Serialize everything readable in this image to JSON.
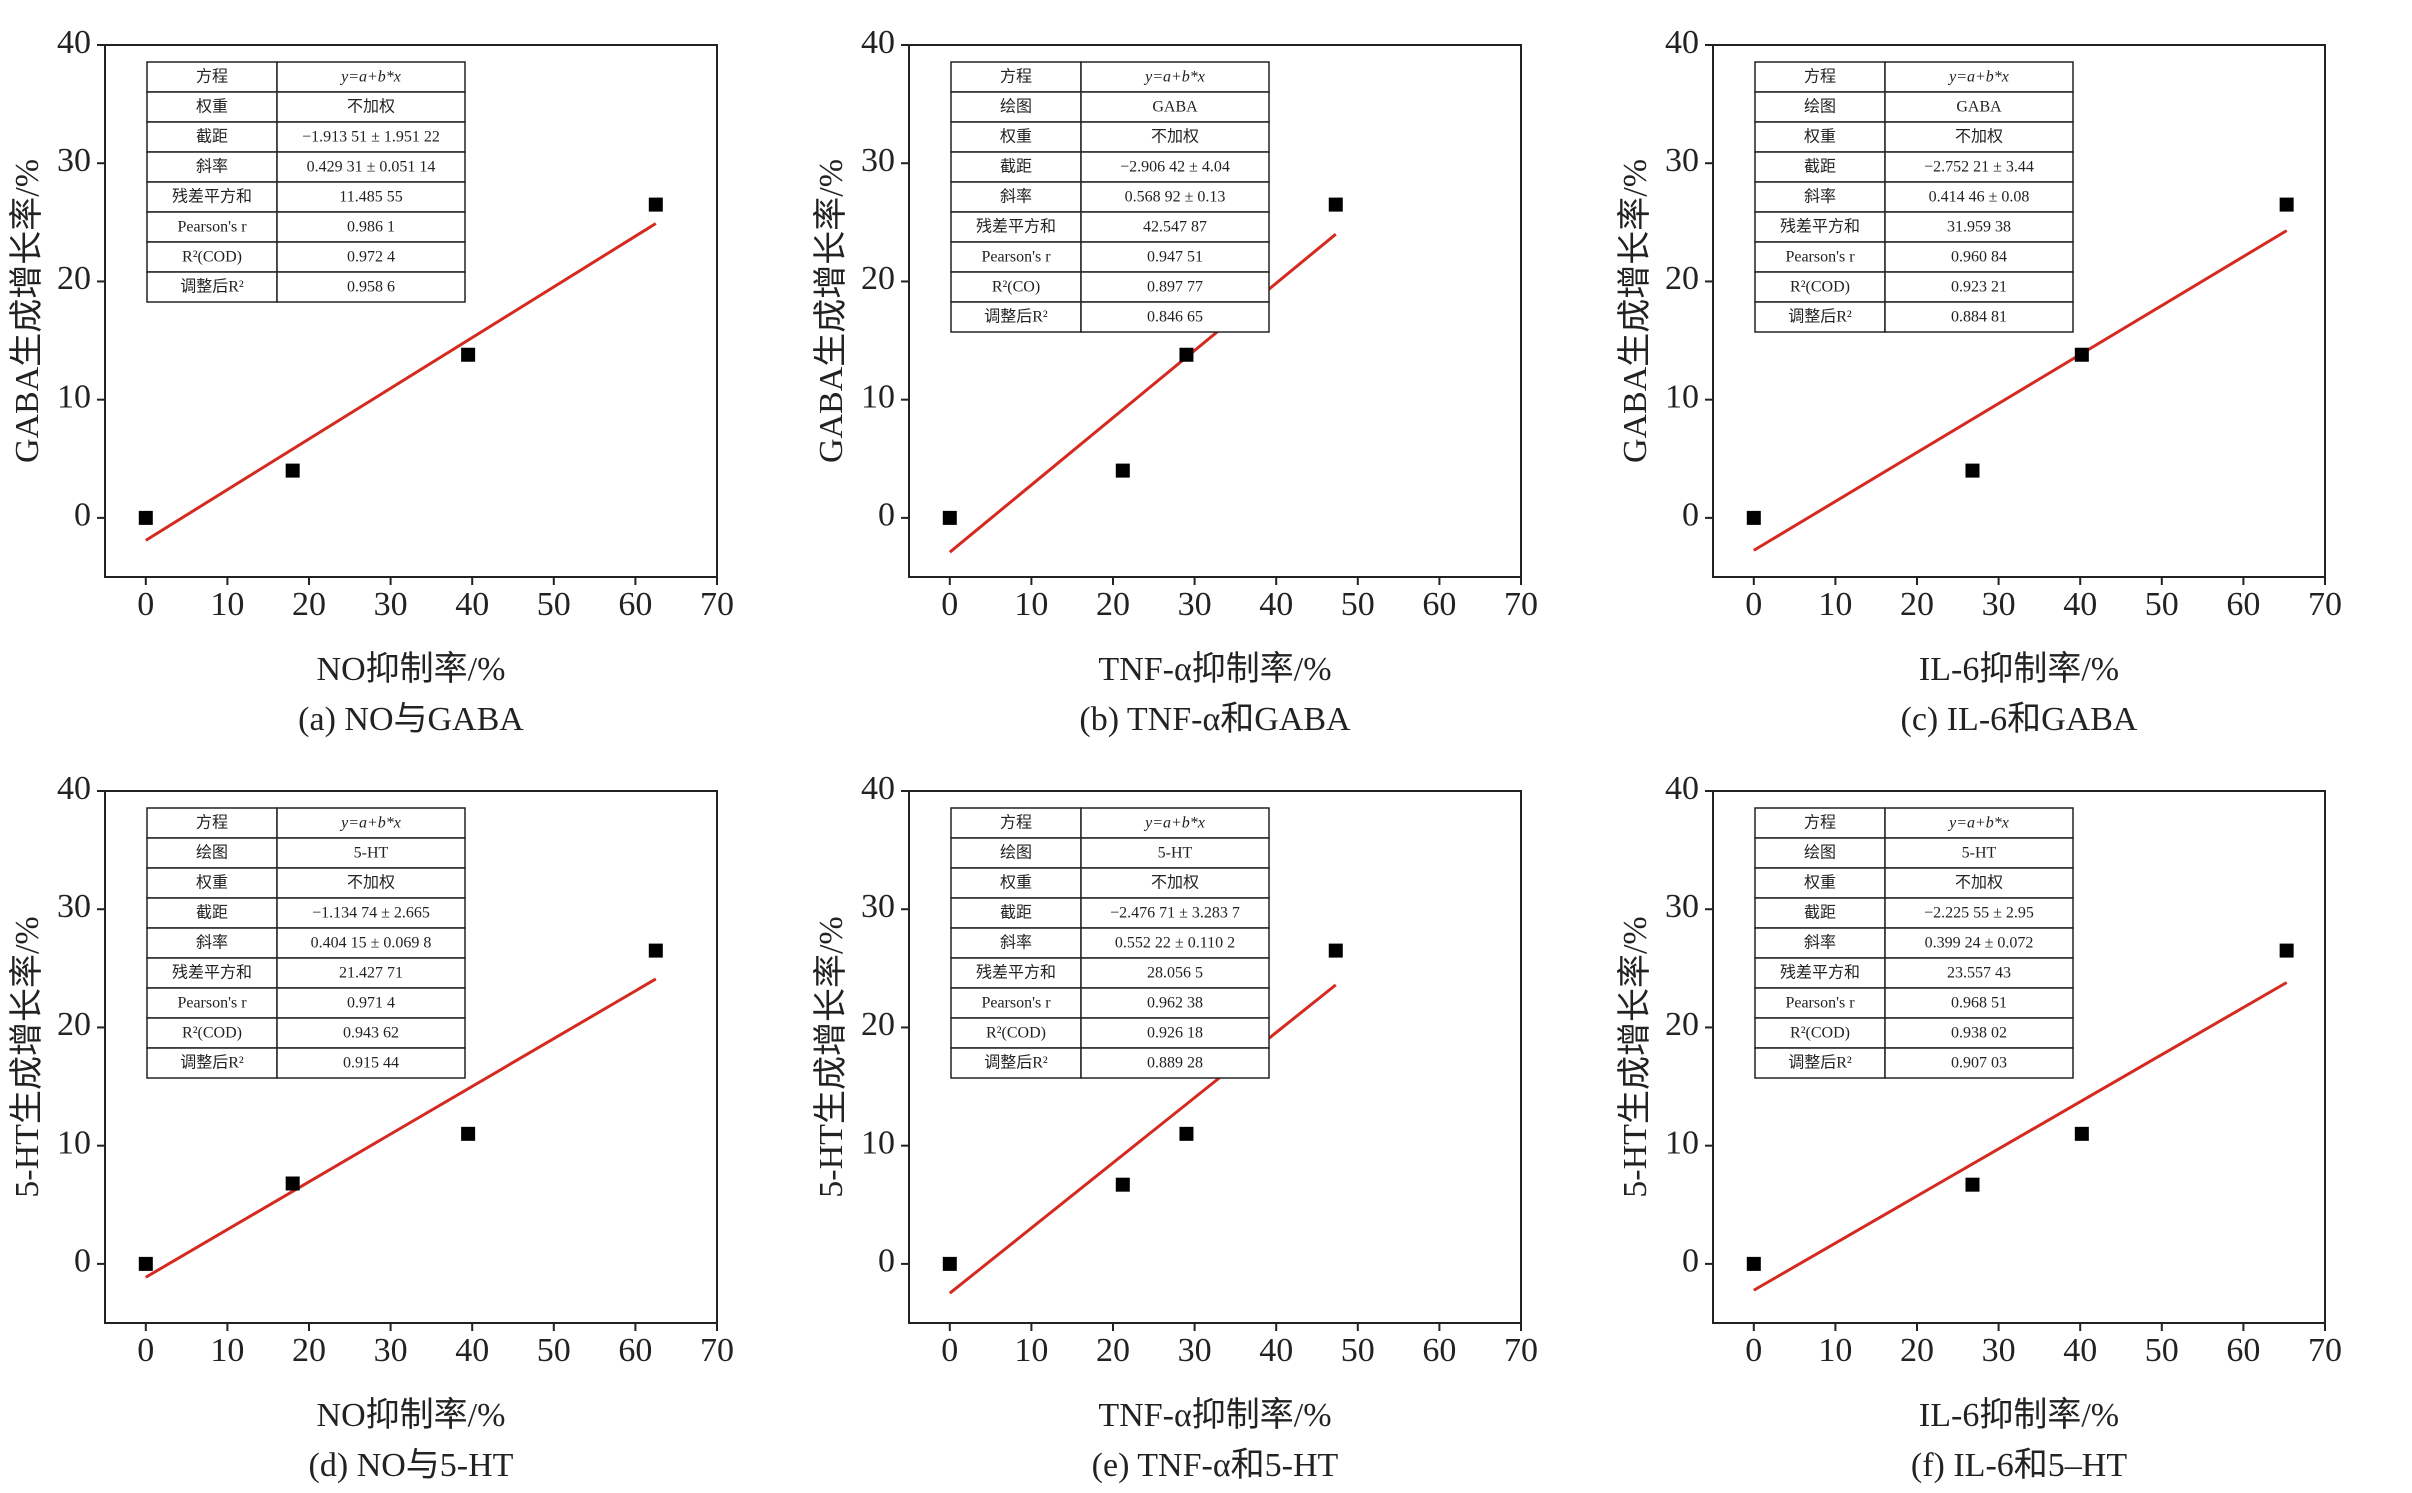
{
  "chart_data": [
    {
      "type": "scatter",
      "caption": "(a) NO与GABA",
      "xlabel": "NO抑制率/%",
      "ylabel": "GABA生成增长率/%",
      "x": [
        0,
        18,
        39.5,
        62.5
      ],
      "y": [
        0,
        4,
        13.8,
        26.5
      ],
      "color": "#000000",
      "fit_line": {
        "x": [
          0,
          62.5
        ],
        "y": [
          -1.9,
          24.9
        ],
        "color": "#d42a20"
      },
      "xlim": [
        -5,
        70
      ],
      "ylim": [
        -5,
        40
      ],
      "xticks": [
        0,
        10,
        20,
        30,
        40,
        50,
        60,
        70
      ],
      "yticks": [
        0,
        10,
        20,
        30,
        40
      ],
      "table": [
        [
          "方程",
          "y=a+b*x"
        ],
        [
          "权重",
          "不加权"
        ],
        [
          "截距",
          "−1.913 51 ± 1.951 22"
        ],
        [
          "斜率",
          "0.429 31 ± 0.051 14"
        ],
        [
          "残差平方和",
          "11.485 55"
        ],
        [
          "Pearson's r",
          "0.986 1"
        ],
        [
          "R²(COD)",
          "0.972 4"
        ],
        [
          "调整后R²",
          "0.958 6"
        ]
      ]
    },
    {
      "type": "scatter",
      "caption": "(b) TNF-α和GABA",
      "xlabel": "TNF-α抑制率/%",
      "ylabel": "GABA生成增长率/%",
      "x": [
        0,
        21.2,
        29,
        47.3
      ],
      "y": [
        0,
        4,
        13.8,
        26.5
      ],
      "color": "#000000",
      "fit_line": {
        "x": [
          0,
          47.3
        ],
        "y": [
          -2.9,
          24.0
        ],
        "color": "#d42a20"
      },
      "xlim": [
        -5,
        70
      ],
      "ylim": [
        -5,
        40
      ],
      "xticks": [
        0,
        10,
        20,
        30,
        40,
        50,
        60,
        70
      ],
      "yticks": [
        0,
        10,
        20,
        30,
        40
      ],
      "table": [
        [
          "方程",
          "y=a+b*x"
        ],
        [
          "绘图",
          "GABA"
        ],
        [
          "权重",
          "不加权"
        ],
        [
          "截距",
          "−2.906 42 ± 4.04"
        ],
        [
          "斜率",
          "0.568 92 ± 0.13"
        ],
        [
          "残差平方和",
          "42.547 87"
        ],
        [
          "Pearson's r",
          "0.947 51"
        ],
        [
          "R²(CO)",
          "0.897 77"
        ],
        [
          "调整后R²",
          "0.846 65"
        ]
      ]
    },
    {
      "type": "scatter",
      "caption": "(c) IL-6和GABA",
      "xlabel": "IL-6抑制率/%",
      "ylabel": "GABA生成增长率/%",
      "x": [
        0,
        26.8,
        40.2,
        65.3
      ],
      "y": [
        0,
        4,
        13.8,
        26.5
      ],
      "color": "#000000",
      "fit_line": {
        "x": [
          0,
          65.3
        ],
        "y": [
          -2.75,
          24.3
        ],
        "color": "#d42a20"
      },
      "xlim": [
        -5,
        70
      ],
      "ylim": [
        -5,
        40
      ],
      "xticks": [
        0,
        10,
        20,
        30,
        40,
        50,
        60,
        70
      ],
      "yticks": [
        0,
        10,
        20,
        30,
        40
      ],
      "table": [
        [
          "方程",
          "y=a+b*x"
        ],
        [
          "绘图",
          "GABA"
        ],
        [
          "权重",
          "不加权"
        ],
        [
          "截距",
          "−2.752 21 ± 3.44"
        ],
        [
          "斜率",
          "0.414 46 ± 0.08"
        ],
        [
          "残差平方和",
          "31.959 38"
        ],
        [
          "Pearson's r",
          "0.960 84"
        ],
        [
          "R²(COD)",
          "0.923 21"
        ],
        [
          "调整后R²",
          "0.884 81"
        ]
      ]
    },
    {
      "type": "scatter",
      "caption": "(d) NO与5-HT",
      "xlabel": "NO抑制率/%",
      "ylabel": "5-HT生成增长率/%",
      "x": [
        0,
        18,
        39.5,
        62.5
      ],
      "y": [
        0,
        6.8,
        11,
        26.5
      ],
      "color": "#000000",
      "fit_line": {
        "x": [
          0,
          62.5
        ],
        "y": [
          -1.13,
          24.1
        ],
        "color": "#d42a20"
      },
      "xlim": [
        -5,
        70
      ],
      "ylim": [
        -5,
        40
      ],
      "xticks": [
        0,
        10,
        20,
        30,
        40,
        50,
        60,
        70
      ],
      "yticks": [
        0,
        10,
        20,
        30,
        40
      ],
      "table": [
        [
          "方程",
          "y=a+b*x"
        ],
        [
          "绘图",
          "5-HT"
        ],
        [
          "权重",
          "不加权"
        ],
        [
          "截距",
          "−1.134 74 ± 2.665"
        ],
        [
          "斜率",
          "0.404 15 ± 0.069 8"
        ],
        [
          "残差平方和",
          "21.427 71"
        ],
        [
          "Pearson's r",
          "0.971 4"
        ],
        [
          "R²(COD)",
          "0.943 62"
        ],
        [
          "调整后R²",
          "0.915 44"
        ]
      ]
    },
    {
      "type": "scatter",
      "caption": "(e) TNF-α和5-HT",
      "xlabel": "TNF-α抑制率/%",
      "ylabel": "5-HT生成增长率/%",
      "x": [
        0,
        21.2,
        29,
        47.3
      ],
      "y": [
        0,
        6.7,
        11,
        26.5
      ],
      "color": "#000000",
      "fit_line": {
        "x": [
          0,
          47.3
        ],
        "y": [
          -2.48,
          23.6
        ],
        "color": "#d42a20"
      },
      "xlim": [
        -5,
        70
      ],
      "ylim": [
        -5,
        40
      ],
      "xticks": [
        0,
        10,
        20,
        30,
        40,
        50,
        60,
        70
      ],
      "yticks": [
        0,
        10,
        20,
        30,
        40
      ],
      "table": [
        [
          "方程",
          "y=a+b*x"
        ],
        [
          "绘图",
          "5-HT"
        ],
        [
          "权重",
          "不加权"
        ],
        [
          "截距",
          "−2.476 71 ± 3.283 7"
        ],
        [
          "斜率",
          "0.552 22 ± 0.110 2"
        ],
        [
          "残差平方和",
          "28.056 5"
        ],
        [
          "Pearson's r",
          "0.962 38"
        ],
        [
          "R²(COD)",
          "0.926 18"
        ],
        [
          "调整后R²",
          "0.889 28"
        ]
      ]
    },
    {
      "type": "scatter",
      "caption": "(f) IL-6和5–HT",
      "xlabel": "IL-6抑制率/%",
      "ylabel": "5-HT生成增长率/%",
      "x": [
        0,
        26.8,
        40.2,
        65.3
      ],
      "y": [
        0,
        6.7,
        11,
        26.5
      ],
      "color": "#000000",
      "fit_line": {
        "x": [
          0,
          65.3
        ],
        "y": [
          -2.23,
          23.8
        ],
        "color": "#d42a20"
      },
      "xlim": [
        -5,
        70
      ],
      "ylim": [
        -5,
        40
      ],
      "xticks": [
        0,
        10,
        20,
        30,
        40,
        50,
        60,
        70
      ],
      "yticks": [
        0,
        10,
        20,
        30,
        40
      ],
      "table": [
        [
          "方程",
          "y=a+b*x"
        ],
        [
          "绘图",
          "5-HT"
        ],
        [
          "权重",
          "不加权"
        ],
        [
          "截距",
          "−2.225 55 ± 2.95"
        ],
        [
          "斜率",
          "0.399 24 ± 0.072"
        ],
        [
          "残差平方和",
          "23.557 43"
        ],
        [
          "Pearson's r",
          "0.968 51"
        ],
        [
          "R²(COD)",
          "0.938 02"
        ],
        [
          "调整后R²",
          "0.907 03"
        ]
      ]
    }
  ]
}
